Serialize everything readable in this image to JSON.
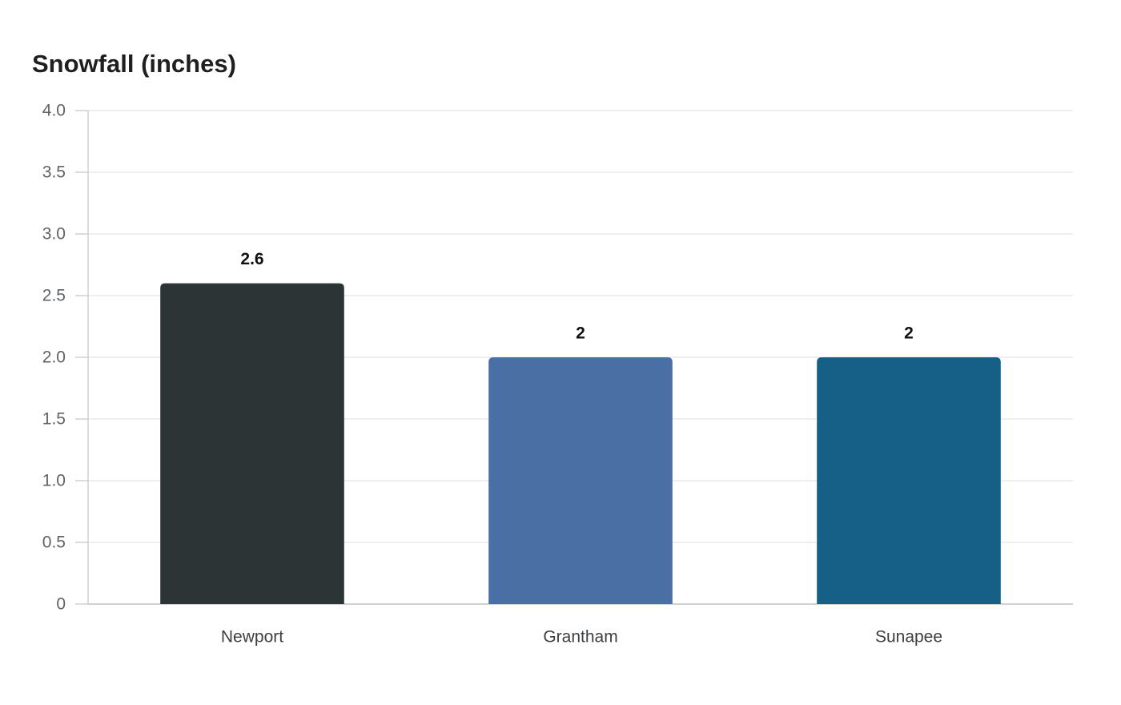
{
  "chart_data": {
    "type": "bar",
    "title": "Snowfall (inches)",
    "categories": [
      "Newport",
      "Grantham",
      "Sunapee"
    ],
    "values": [
      2.6,
      2,
      2
    ],
    "value_labels": [
      "2.6",
      "2",
      "2"
    ],
    "colors": [
      "#2d3436",
      "#4a6fa5",
      "#166088"
    ],
    "ylim": [
      0,
      4
    ],
    "yticks": [
      0,
      0.5,
      1,
      1.5,
      2,
      2.5,
      3,
      3.5,
      4
    ],
    "ytick_labels": [
      "0",
      "0.5",
      "1.0",
      "1.5",
      "2.0",
      "2.5",
      "3.0",
      "3.5",
      "4.0"
    ],
    "grid": true,
    "legend": "none",
    "xlabel": "",
    "ylabel": ""
  }
}
